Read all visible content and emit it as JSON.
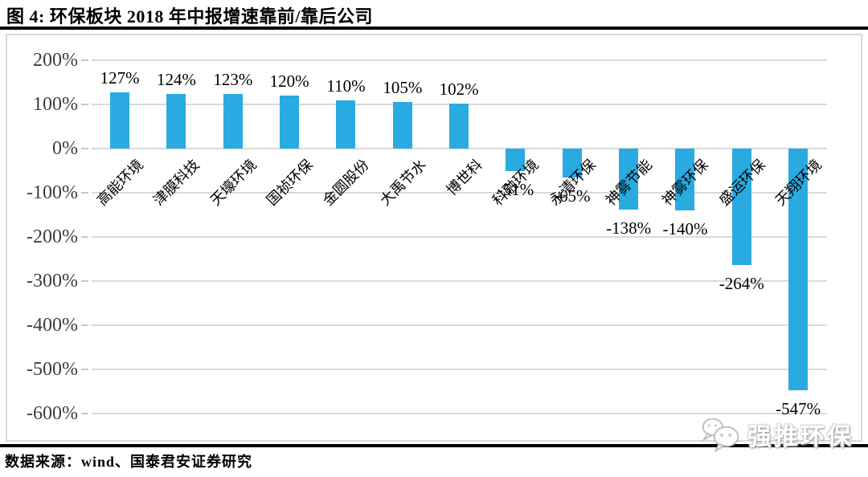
{
  "figure": {
    "title": "图 4: 环保板块 2018 年中报增速靠前/靠后公司",
    "source_note": "数据来源：wind、国泰君安证券研究"
  },
  "watermark": {
    "icon": "wechat-logo",
    "text": "强推环保"
  },
  "chart_data": {
    "type": "bar",
    "title": "环保板块2018年中报增速靠前/靠后公司",
    "categories": [
      "高能环境",
      "津膜科技",
      "天壕环境",
      "国祯环保",
      "金圆股份",
      "大禹节水",
      "博世科",
      "科融环境",
      "永清环保",
      "神雾节能",
      "神雾环保",
      "盛运环保",
      "天翔环境"
    ],
    "values": [
      127,
      124,
      123,
      120,
      110,
      105,
      102,
      -51,
      -65,
      -138,
      -140,
      -264,
      -547
    ],
    "data_labels": [
      "127%",
      "124%",
      "123%",
      "120%",
      "110%",
      "105%",
      "102%",
      "-51%",
      "-65%",
      "-138%",
      "-140%",
      "-264%",
      "-547%"
    ],
    "unit": "%",
    "xlabel": "",
    "ylabel": "",
    "ylim": [
      -600,
      200
    ],
    "yticks": [
      200,
      100,
      0,
      -100,
      -200,
      -300,
      -400,
      -500,
      -600
    ],
    "ytick_labels": [
      "200%",
      "100%",
      "0%",
      "-100%",
      "-200%",
      "-300%",
      "-400%",
      "-500%",
      "-600%"
    ],
    "bar_color": "#29ABE2",
    "gridline_color": "#D9D9D9",
    "grid": true,
    "legend": "none",
    "category_label_rotation_deg": 45
  }
}
